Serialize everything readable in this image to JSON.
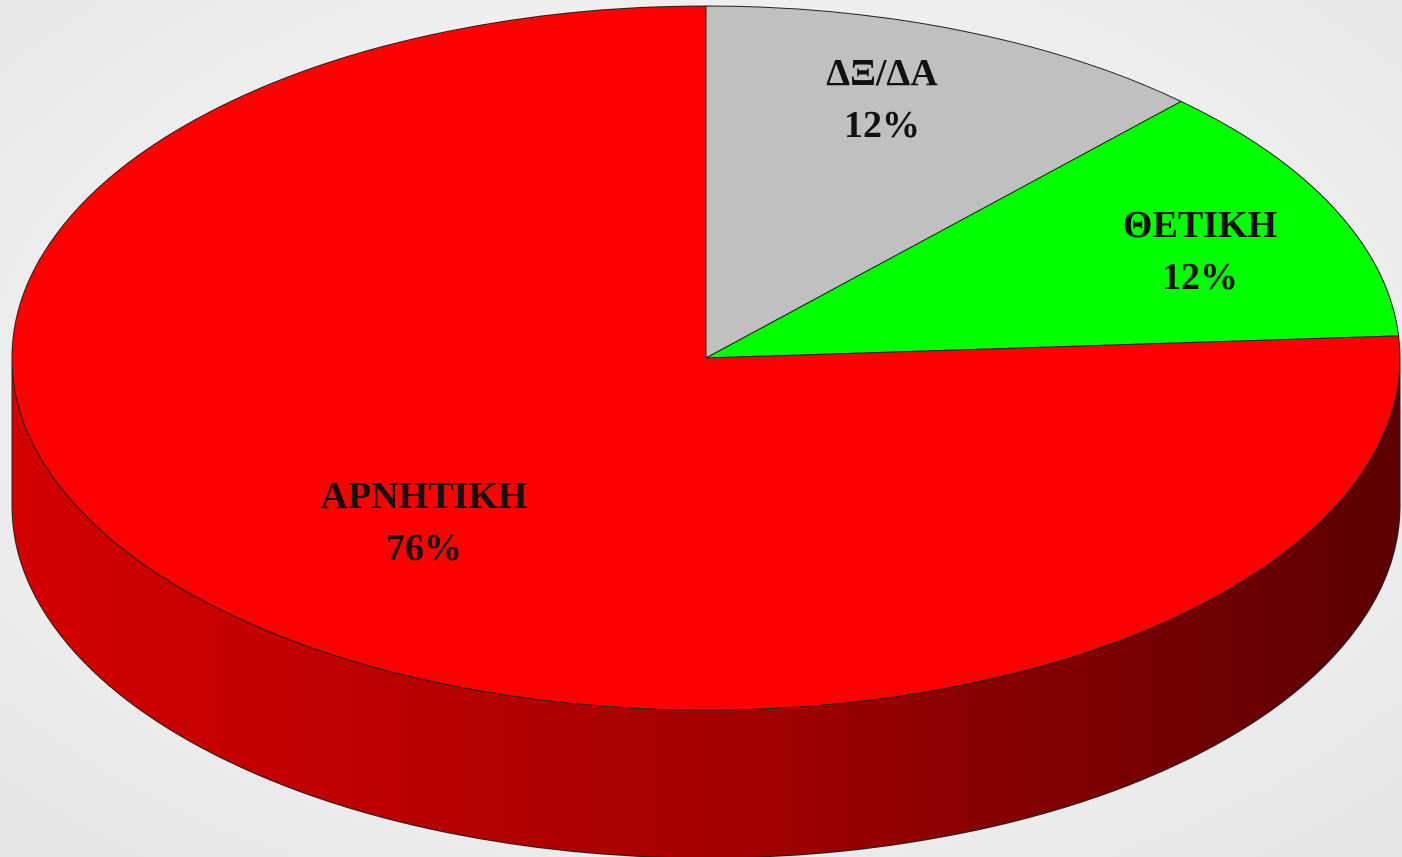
{
  "chart_data": {
    "type": "pie",
    "slices": [
      {
        "label": "ΔΞ/ΔΑ",
        "percent_text": "12%",
        "value": 12,
        "color": "#c0c0c0"
      },
      {
        "label": "ΘΕΤΙΚΗ",
        "percent_text": "12%",
        "value": 12,
        "color": "#00ff00"
      },
      {
        "label": "ΑΡΝΗΤΙΚΗ",
        "percent_text": "76%",
        "value": 76,
        "color": "#ff0000"
      }
    ],
    "side_color_light": "#d40000",
    "side_color_dark": "#5a0000",
    "background": "#f2f2f2",
    "legend": "none",
    "three_d": true
  }
}
